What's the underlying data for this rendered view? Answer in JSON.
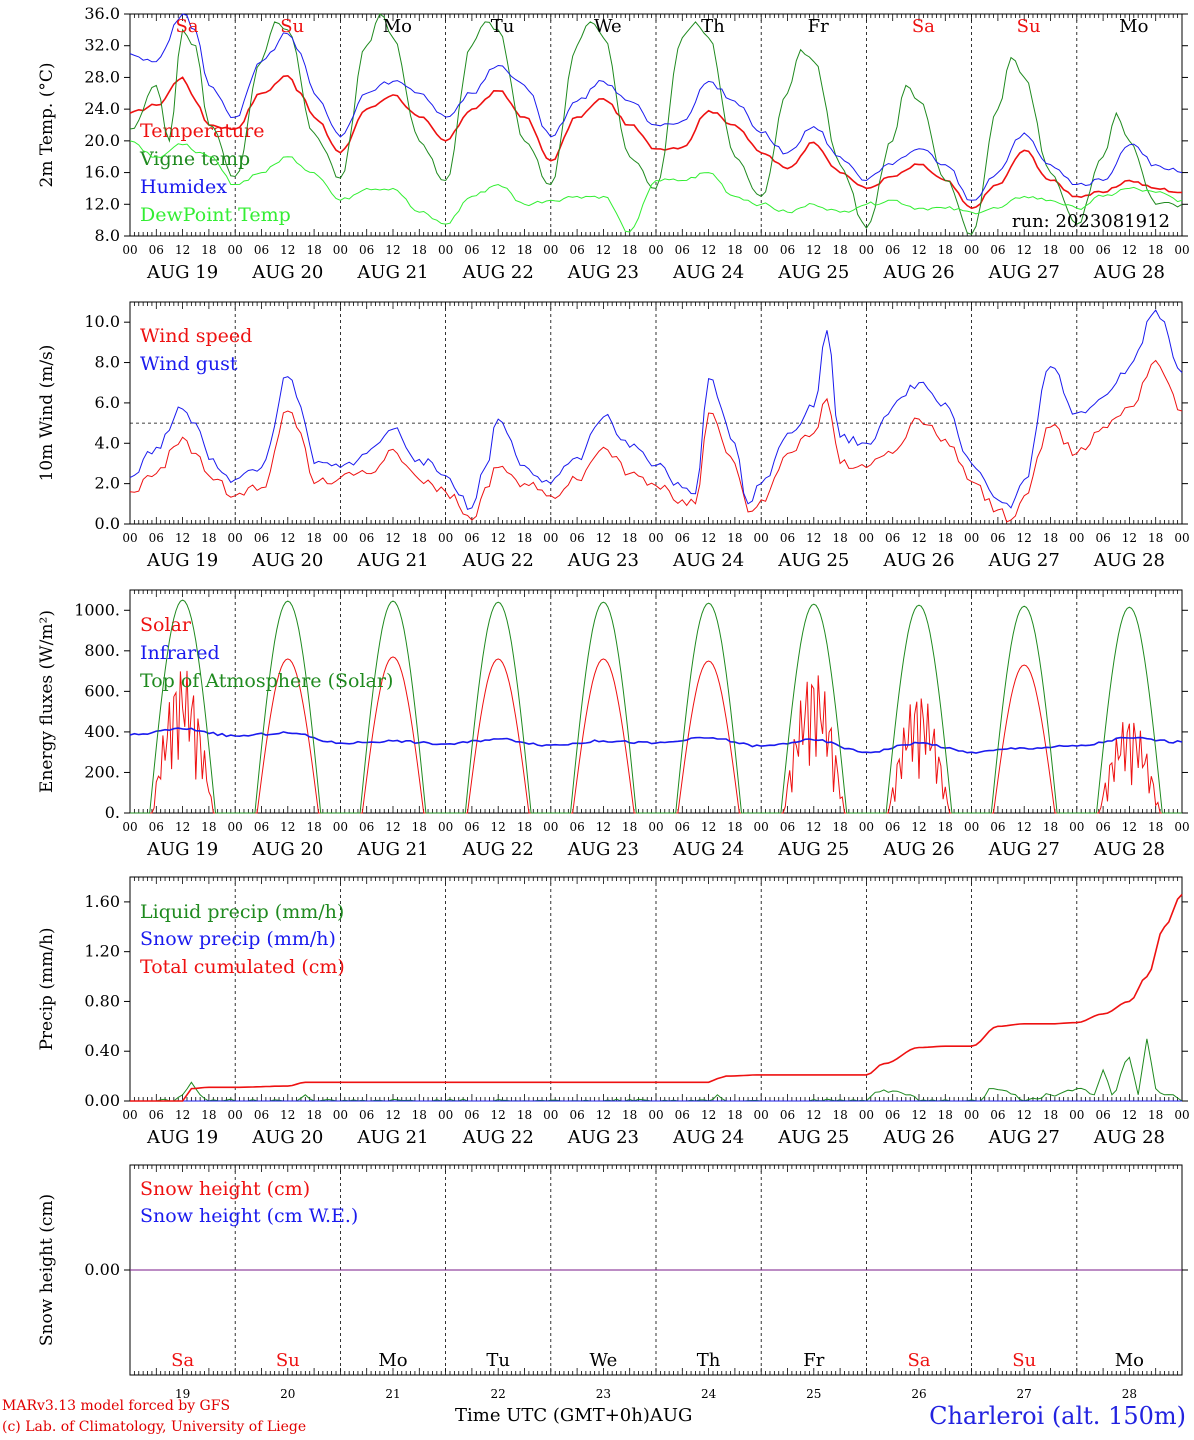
{
  "colors": {
    "red": "#ee1111",
    "blue": "#1a1aee",
    "green": "#1f8a1f",
    "light_green": "#33ee33",
    "purple": "#7a1a8a",
    "weekend": "#ee1111",
    "weekday": "#000000"
  },
  "days": [
    {
      "abbr": "Sa",
      "date": "AUG 19",
      "num": "19",
      "weekend": true
    },
    {
      "abbr": "Su",
      "date": "AUG 20",
      "num": "20",
      "weekend": true
    },
    {
      "abbr": "Mo",
      "date": "AUG 21",
      "num": "21",
      "weekend": false
    },
    {
      "abbr": "Tu",
      "date": "AUG 22",
      "num": "22",
      "weekend": false
    },
    {
      "abbr": "We",
      "date": "AUG 23",
      "num": "23",
      "weekend": false
    },
    {
      "abbr": "Th",
      "date": "AUG 24",
      "num": "24",
      "weekend": false
    },
    {
      "abbr": "Fr",
      "date": "AUG 25",
      "num": "25",
      "weekend": false
    },
    {
      "abbr": "Sa",
      "date": "AUG 26",
      "num": "26",
      "weekend": true
    },
    {
      "abbr": "Su",
      "date": "AUG 27",
      "num": "27",
      "weekend": true
    },
    {
      "abbr": "Mo",
      "date": "AUG 28",
      "num": "28",
      "weekend": false
    }
  ],
  "hour_ticks": [
    "00",
    "06",
    "12",
    "18"
  ],
  "hour_tick_end": "00",
  "footer": {
    "model": "MARv3.13 model forced by GFS",
    "lab": "(c) Lab. of Climatology, University of Liege",
    "xlabel": "Time UTC (GMT+0h)",
    "month": "AUG",
    "station": "Charleroi (alt. 150m)"
  },
  "chart_data": [
    {
      "type": "line",
      "id": "temperature",
      "ylabel": "2m Temp. (°C)",
      "ylim": [
        8.0,
        36.0
      ],
      "yticks": [
        "8.0",
        "12.0",
        "16.0",
        "20.0",
        "24.0",
        "28.0",
        "32.0",
        "36.0"
      ],
      "annotation": "run: 2023081912",
      "x_unit": "hours since AUG 19 00 UTC",
      "series": [
        {
          "name": "Temperature",
          "color": "red",
          "x": [
            0,
            6,
            12,
            15,
            18,
            24,
            30,
            36,
            39,
            42,
            48,
            54,
            60,
            66,
            72,
            78,
            84,
            90,
            96,
            102,
            108,
            114,
            120,
            126,
            132,
            138,
            144,
            150,
            156,
            162,
            168,
            174,
            180,
            186,
            192,
            198,
            204,
            210,
            216,
            222,
            228,
            234,
            240
          ],
          "y": [
            23.5,
            24.5,
            28.0,
            25,
            22,
            21.5,
            26,
            28.2,
            26,
            23,
            18.5,
            24,
            25.8,
            23,
            20,
            24,
            26.3,
            23,
            17.5,
            23,
            25.3,
            22,
            19,
            19.2,
            23.8,
            22,
            18.5,
            16.5,
            19.8,
            16,
            14,
            15.5,
            17.0,
            15,
            11.5,
            14.5,
            18.8,
            15,
            13,
            13.5,
            15.0,
            14,
            13.5
          ]
        },
        {
          "name": "Vigne temp",
          "color": "green",
          "x": [
            0,
            6,
            9,
            12,
            15,
            18,
            24,
            30,
            33,
            36,
            42,
            48,
            54,
            57,
            60,
            66,
            72,
            78,
            81,
            84,
            90,
            96,
            102,
            105,
            108,
            114,
            120,
            126,
            129,
            132,
            138,
            144,
            150,
            153,
            156,
            162,
            168,
            174,
            177,
            180,
            186,
            192,
            198,
            201,
            204,
            210,
            216,
            222,
            225,
            228,
            234,
            240
          ],
          "y": [
            21.5,
            27,
            20,
            34,
            32,
            22,
            15.5,
            30,
            35,
            34,
            21,
            15.3,
            32,
            36,
            33,
            20,
            15,
            32,
            35,
            34,
            20,
            14.5,
            32,
            35,
            33,
            18,
            14,
            33,
            35,
            33,
            18,
            13,
            26,
            31.5,
            30,
            17,
            9,
            20,
            27,
            25,
            15,
            8.2,
            24,
            30.5,
            28,
            16,
            9.5,
            18,
            23.5,
            20,
            12,
            12
          ]
        },
        {
          "name": "Humidex",
          "color": "blue",
          "x": [
            0,
            6,
            12,
            15,
            18,
            24,
            30,
            36,
            39,
            42,
            48,
            54,
            60,
            66,
            72,
            78,
            84,
            90,
            96,
            102,
            108,
            114,
            120,
            126,
            132,
            138,
            144,
            150,
            156,
            162,
            168,
            174,
            180,
            186,
            192,
            198,
            204,
            210,
            216,
            222,
            228,
            234,
            240
          ],
          "y": [
            31,
            30,
            36,
            34,
            27,
            23,
            30,
            33.5,
            31,
            26,
            20.5,
            26,
            27.5,
            26,
            23,
            26,
            29.5,
            27,
            20.5,
            25,
            27.5,
            25,
            22,
            22.5,
            27.5,
            25,
            21,
            18.5,
            21.8,
            18,
            15,
            17,
            19.0,
            17,
            12.5,
            16,
            21.0,
            17,
            14.5,
            15,
            19.5,
            17,
            16
          ]
        },
        {
          "name": "DewPoint Temp",
          "color": "light_green",
          "x": [
            0,
            6,
            12,
            18,
            24,
            30,
            36,
            42,
            48,
            54,
            60,
            66,
            72,
            78,
            84,
            90,
            96,
            102,
            108,
            114,
            120,
            126,
            132,
            138,
            144,
            150,
            156,
            162,
            168,
            174,
            180,
            186,
            192,
            198,
            204,
            210,
            216,
            222,
            228,
            234,
            240
          ],
          "y": [
            20,
            18,
            19.5,
            18,
            14.5,
            16,
            18,
            16,
            12.5,
            14,
            14,
            11,
            9.5,
            13,
            14.5,
            12,
            12.5,
            13,
            13,
            8.5,
            15,
            15,
            16,
            13,
            12,
            11,
            12,
            11,
            12,
            12.5,
            11.5,
            11.5,
            11,
            11.5,
            13,
            12.5,
            11.5,
            13,
            14,
            13.5,
            12.5
          ]
        }
      ]
    },
    {
      "type": "line",
      "id": "wind",
      "ylabel": "10m Wind (m/s)",
      "ylim": [
        0,
        11
      ],
      "yticks": [
        "0.0",
        "2.0",
        "4.0",
        "6.0",
        "8.0",
        "10.0"
      ],
      "reference_line": 5.0,
      "x_unit": "hours since AUG 19 00 UTC",
      "series": [
        {
          "name": "Wind speed",
          "color": "red",
          "x": [
            0,
            6,
            12,
            15,
            18,
            24,
            30,
            36,
            39,
            42,
            48,
            54,
            60,
            66,
            72,
            78,
            81,
            84,
            90,
            96,
            102,
            108,
            114,
            120,
            126,
            129,
            132,
            138,
            141,
            144,
            150,
            156,
            159,
            162,
            168,
            174,
            180,
            186,
            192,
            198,
            201,
            204,
            210,
            216,
            222,
            228,
            234,
            240
          ],
          "y": [
            1.6,
            2.5,
            4.3,
            3.5,
            2.4,
            1.4,
            1.8,
            5.6,
            4.5,
            2.0,
            2.3,
            2.5,
            3.7,
            2.2,
            1.6,
            0.2,
            1.8,
            2.8,
            2.0,
            1.4,
            2.2,
            3.8,
            2.5,
            1.9,
            1.2,
            1.0,
            5.5,
            3.0,
            0.6,
            1.2,
            3.5,
            4.5,
            6.2,
            3.0,
            2.8,
            3.5,
            5.2,
            4.2,
            2.1,
            0.7,
            0.2,
            1.4,
            4.8,
            3.5,
            4.8,
            5.8,
            8.1,
            5.6
          ]
        },
        {
          "name": "Wind gust",
          "color": "blue",
          "x": [
            0,
            6,
            12,
            15,
            18,
            24,
            30,
            36,
            39,
            42,
            48,
            54,
            60,
            66,
            72,
            78,
            81,
            84,
            90,
            96,
            102,
            108,
            114,
            120,
            126,
            129,
            132,
            138,
            141,
            144,
            150,
            156,
            159,
            162,
            168,
            174,
            180,
            186,
            192,
            198,
            201,
            204,
            210,
            216,
            222,
            228,
            234,
            240
          ],
          "y": [
            2.3,
            3.8,
            5.7,
            5.0,
            3.2,
            2.2,
            2.8,
            7.3,
            5.8,
            3.0,
            2.8,
            3.5,
            4.7,
            3.2,
            2.4,
            0.8,
            2.8,
            5.2,
            2.9,
            2.0,
            3.3,
            5.3,
            3.8,
            2.9,
            1.8,
            1.5,
            7.2,
            4.0,
            1.0,
            2.0,
            4.5,
            5.8,
            9.6,
            4.3,
            4.0,
            5.8,
            7.0,
            6.0,
            3.0,
            1.2,
            0.8,
            2.2,
            7.8,
            5.5,
            6.3,
            7.8,
            10.6,
            7.5
          ]
        }
      ]
    },
    {
      "type": "line",
      "id": "energy",
      "ylabel": "Energy fluxes (W/m²)",
      "ylim": [
        0,
        1100
      ],
      "yticks": [
        "0.",
        "200.",
        "400.",
        "600.",
        "800.",
        "1000."
      ],
      "x_unit": "hours since AUG 19 00 UTC",
      "daily_peaks": {
        "toa": [
          1050,
          1045,
          1045,
          1040,
          1040,
          1035,
          1030,
          1025,
          1020,
          1015
        ],
        "solar": [
          720,
          760,
          770,
          760,
          760,
          750,
          710,
          600,
          730,
          480
        ]
      },
      "series": [
        {
          "name": "Solar",
          "color": "red",
          "sunrise_h": 5,
          "sunset_h": 19
        },
        {
          "name": "Infrared",
          "color": "blue",
          "x": [
            0,
            12,
            24,
            36,
            48,
            60,
            72,
            84,
            96,
            108,
            120,
            132,
            144,
            156,
            168,
            180,
            192,
            204,
            216,
            228,
            240
          ],
          "y": [
            385,
            415,
            380,
            395,
            345,
            355,
            340,
            365,
            335,
            355,
            345,
            370,
            330,
            360,
            300,
            345,
            300,
            320,
            330,
            370,
            350
          ]
        },
        {
          "name": "Top of Atmosphere (Solar)",
          "color": "green",
          "sunrise_h": 4.5,
          "sunset_h": 19.5
        }
      ]
    },
    {
      "type": "line",
      "id": "precip",
      "ylabel": "Precip (mm/h)",
      "ylim": [
        0,
        1.8
      ],
      "yticks": [
        "0.00",
        "0.40",
        "0.80",
        "1.20",
        "1.60"
      ],
      "x_unit": "hours since AUG 19 00 UTC",
      "series": [
        {
          "name": "Liquid precip (mm/h)",
          "color": "green",
          "x": [
            0,
            10,
            12,
            14,
            16,
            18,
            24,
            38,
            40,
            42,
            48,
            132,
            134,
            136,
            168,
            170,
            174,
            178,
            180,
            194,
            196,
            200,
            204,
            210,
            216,
            220,
            222,
            224,
            228,
            230,
            232,
            234,
            236,
            238,
            240
          ],
          "y": [
            0,
            0,
            0.05,
            0.15,
            0.05,
            0,
            0,
            0,
            0.05,
            0,
            0,
            0,
            0.05,
            0,
            0,
            0.07,
            0.08,
            0.05,
            0,
            0,
            0.1,
            0.08,
            0,
            0.05,
            0.1,
            0.05,
            0.25,
            0.05,
            0.35,
            0.05,
            0.5,
            0.1,
            0.05,
            0.05,
            0
          ]
        },
        {
          "name": "Snow precip (mm/h)",
          "color": "blue",
          "x": [
            0,
            240
          ],
          "y": [
            0,
            0
          ]
        },
        {
          "name": "Total cumulated (cm)",
          "color": "red",
          "x": [
            0,
            12,
            14,
            18,
            24,
            36,
            40,
            48,
            132,
            134,
            136,
            144,
            168,
            172,
            180,
            186,
            192,
            198,
            204,
            210,
            216,
            222,
            228,
            232,
            236,
            240
          ],
          "y": [
            0,
            0,
            0.1,
            0.11,
            0.11,
            0.12,
            0.15,
            0.15,
            0.15,
            0.18,
            0.2,
            0.21,
            0.21,
            0.3,
            0.43,
            0.44,
            0.44,
            0.6,
            0.62,
            0.62,
            0.63,
            0.7,
            0.8,
            1.0,
            1.4,
            1.66
          ]
        }
      ]
    },
    {
      "type": "line",
      "id": "snow",
      "ylabel": "Snow height (cm)",
      "ylim": [
        -1,
        1
      ],
      "yticks": [
        "0.00"
      ],
      "x_unit": "hours since AUG 19 00 UTC",
      "series": [
        {
          "name": "Snow height (cm)",
          "color": "red",
          "x": [
            0,
            240
          ],
          "y": [
            0,
            0
          ]
        },
        {
          "name": "Snow height (cm W.E.)",
          "color": "blue",
          "x": [
            0,
            240
          ],
          "y": [
            0,
            0
          ]
        }
      ]
    }
  ]
}
